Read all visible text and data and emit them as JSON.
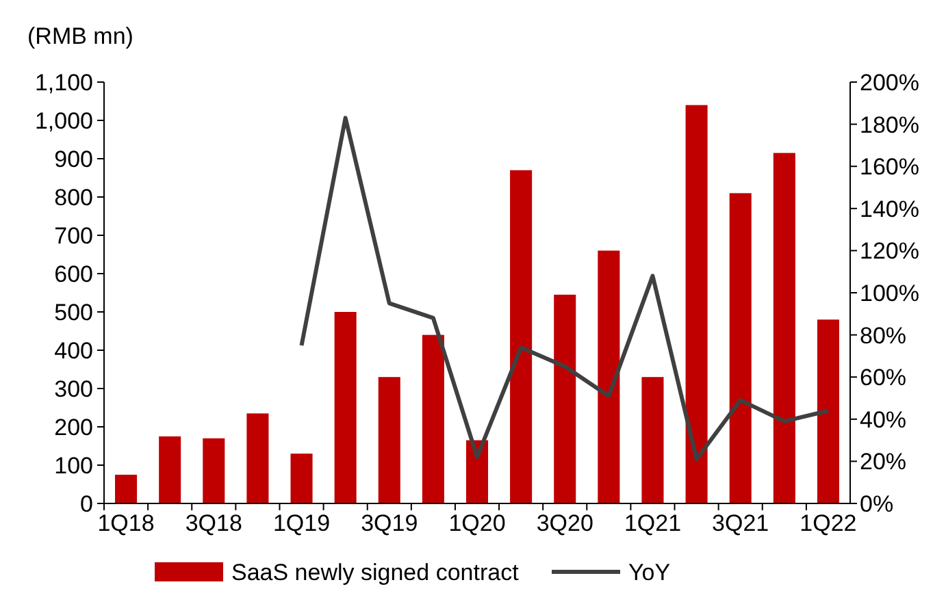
{
  "chart_data": {
    "type": "bar",
    "ylabel": "(RMB mn)",
    "categories": [
      "1Q18",
      null,
      "3Q18",
      null,
      "1Q19",
      null,
      "3Q19",
      null,
      "1Q20",
      null,
      "3Q20",
      null,
      "1Q21",
      null,
      "3Q21",
      null,
      "1Q22"
    ],
    "series": [
      {
        "name": "SaaS newly signed contract",
        "color": "#c00000",
        "values": [
          75,
          175,
          170,
          235,
          130,
          500,
          330,
          440,
          165,
          870,
          545,
          660,
          330,
          1040,
          810,
          915,
          480
        ]
      },
      {
        "name": "YoY",
        "type": "line",
        "axis": "y2",
        "color": "#404040",
        "values": [
          null,
          null,
          null,
          null,
          75,
          183,
          95,
          88,
          22,
          74,
          65,
          51,
          108,
          21,
          49,
          39,
          44
        ]
      }
    ],
    "ylim": [
      0,
      1100
    ],
    "yticks": [
      0,
      100,
      200,
      300,
      400,
      500,
      600,
      700,
      800,
      900,
      {
        "value": 1000,
        "label": "1,000"
      },
      {
        "value": 1100,
        "label": "1,100"
      }
    ],
    "y2lim": [
      0,
      200
    ],
    "y2ticks": [
      {
        "value": 0,
        "label": "0%"
      },
      {
        "value": 20,
        "label": "20%"
      },
      {
        "value": 40,
        "label": "40%"
      },
      {
        "value": 60,
        "label": "60%"
      },
      {
        "value": 80,
        "label": "80%"
      },
      {
        "value": 100,
        "label": "100%"
      },
      {
        "value": 120,
        "label": "120%"
      },
      {
        "value": 140,
        "label": "140%"
      },
      {
        "value": 160,
        "label": "160%"
      },
      {
        "value": 180,
        "label": "180%"
      },
      {
        "value": 200,
        "label": "200%"
      }
    ],
    "grid": false,
    "legend": "bottom",
    "line_style": "solid",
    "marker": "none"
  }
}
